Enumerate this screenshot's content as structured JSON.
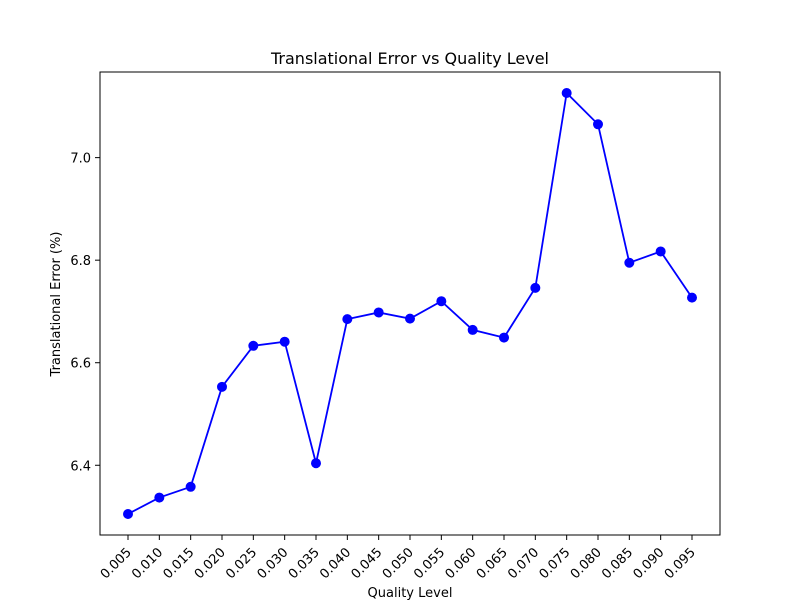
{
  "chart_data": {
    "type": "line",
    "title": "Translational Error vs Quality Level",
    "xlabel": "Quality Level",
    "ylabel": "Translational Error (%)",
    "x": [
      "0.005",
      "0.010",
      "0.015",
      "0.020",
      "0.025",
      "0.030",
      "0.035",
      "0.040",
      "0.045",
      "0.050",
      "0.055",
      "0.060",
      "0.065",
      "0.070",
      "0.075",
      "0.080",
      "0.085",
      "0.090",
      "0.095"
    ],
    "series": [
      {
        "values": [
          6.305,
          6.337,
          6.358,
          6.553,
          6.633,
          6.641,
          6.404,
          6.685,
          6.698,
          6.686,
          6.72,
          6.664,
          6.649,
          6.746,
          7.126,
          7.065,
          6.795,
          6.817,
          6.727
        ],
        "color": "#0000ff",
        "marker": "circle"
      }
    ],
    "ylim": [
      6.264,
      7.167
    ],
    "yticks": [
      "6.4",
      "6.6",
      "6.8",
      "7.0"
    ],
    "yticks_values": [
      6.4,
      6.6,
      6.8,
      7.0
    ],
    "grid": false,
    "legend": "none"
  }
}
